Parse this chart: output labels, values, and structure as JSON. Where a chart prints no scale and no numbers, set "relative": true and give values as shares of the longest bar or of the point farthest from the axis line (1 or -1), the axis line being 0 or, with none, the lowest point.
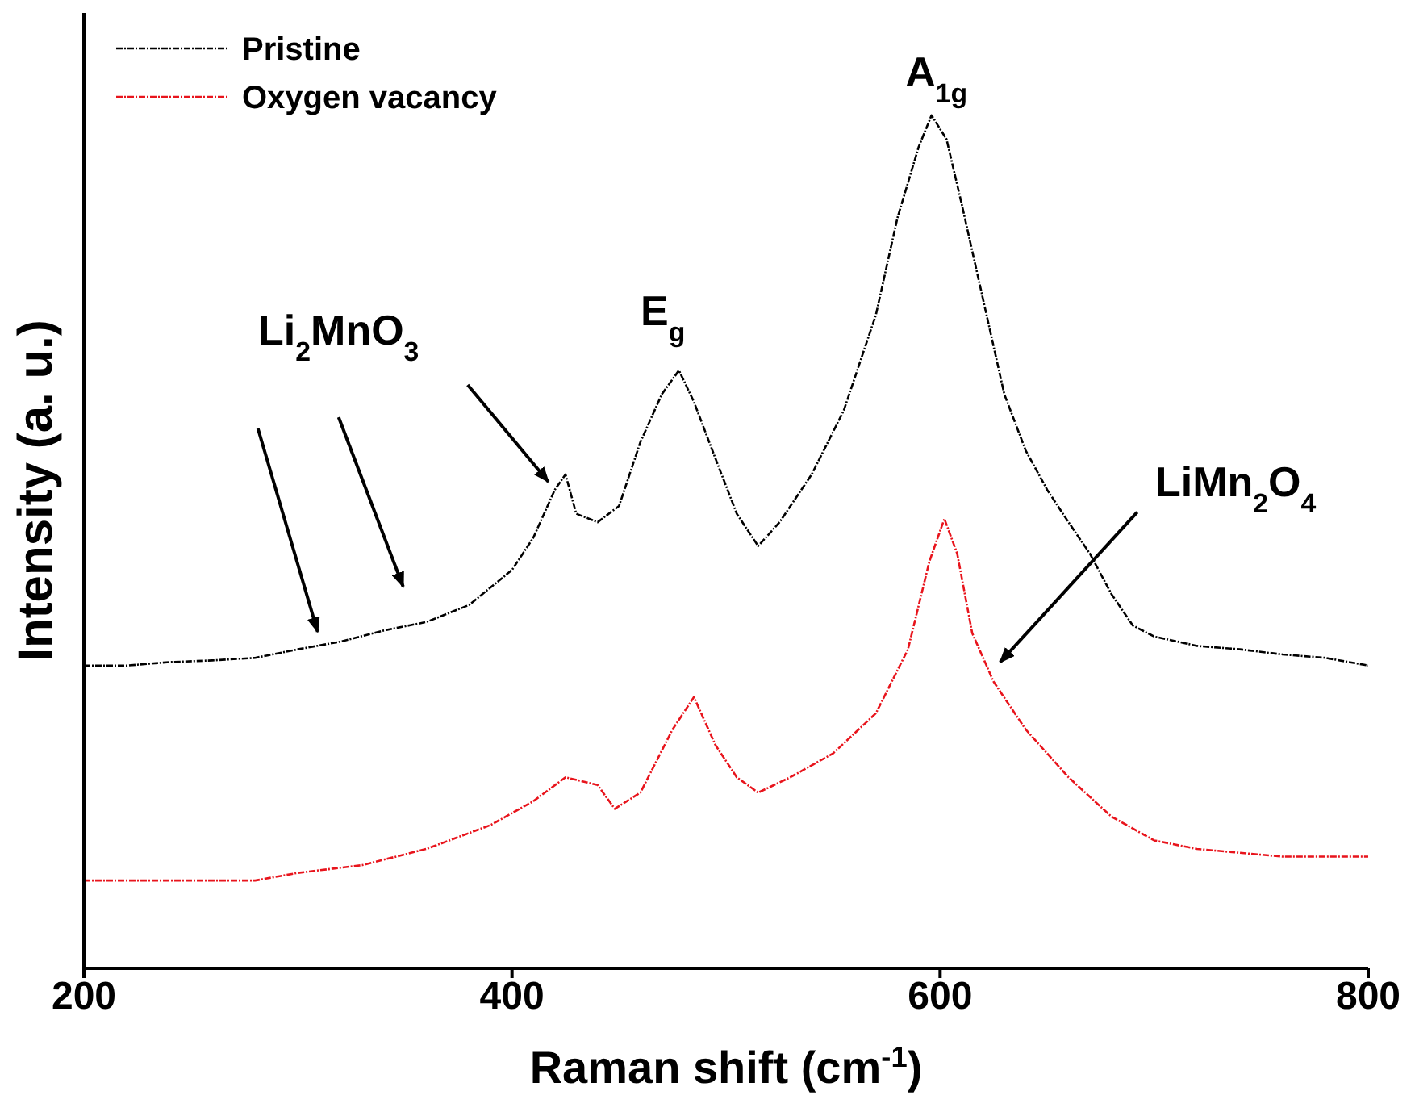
{
  "chart_data": {
    "type": "line",
    "relative": true,
    "xlabel": "Raman shift (cm$^{-1}$)",
    "ylabel": "Intensity (a. u.)",
    "xlim": [
      200,
      800
    ],
    "xticks": [
      200,
      400,
      600,
      800
    ],
    "tick_labels": "x",
    "grid": false,
    "legend": "top left",
    "line_style": "dashed",
    "marker": "none",
    "series": [
      {
        "name": "Pristine",
        "color": "#000000",
        "x": [
          200,
          220,
          240,
          260,
          280,
          300,
          320,
          340,
          360,
          380,
          400,
          410,
          420,
          425,
          430,
          440,
          450,
          460,
          470,
          478,
          485,
          495,
          505,
          515,
          525,
          540,
          555,
          570,
          580,
          590,
          596,
          603,
          610,
          620,
          630,
          640,
          650,
          660,
          670,
          680,
          690,
          700,
          720,
          740,
          760,
          780,
          800
        ],
        "values": [
          0.355,
          0.355,
          0.359,
          0.361,
          0.364,
          0.374,
          0.383,
          0.396,
          0.406,
          0.426,
          0.467,
          0.505,
          0.561,
          0.579,
          0.533,
          0.523,
          0.542,
          0.617,
          0.673,
          0.701,
          0.664,
          0.598,
          0.533,
          0.495,
          0.523,
          0.579,
          0.654,
          0.766,
          0.879,
          0.963,
          1,
          0.972,
          0.897,
          0.785,
          0.673,
          0.607,
          0.561,
          0.523,
          0.486,
          0.439,
          0.402,
          0.389,
          0.378,
          0.374,
          0.368,
          0.364,
          0.355
        ]
      },
      {
        "name": "Oxygen vacancy",
        "color": "#e8141c",
        "x": [
          200,
          240,
          280,
          300,
          330,
          360,
          390,
          410,
          425,
          440,
          448,
          460,
          475,
          485,
          495,
          505,
          515,
          530,
          550,
          570,
          585,
          595,
          602,
          608,
          615,
          625,
          640,
          660,
          680,
          700,
          720,
          760,
          800
        ],
        "values": [
          0.103,
          0.103,
          0.103,
          0.112,
          0.121,
          0.14,
          0.168,
          0.196,
          0.224,
          0.215,
          0.187,
          0.206,
          0.28,
          0.318,
          0.262,
          0.224,
          0.206,
          0.224,
          0.252,
          0.299,
          0.374,
          0.477,
          0.527,
          0.486,
          0.393,
          0.336,
          0.28,
          0.224,
          0.178,
          0.15,
          0.14,
          0.131,
          0.131
        ]
      }
    ],
    "annotations": [
      {
        "text": "Li$_{2}$MnO$_{3}$",
        "x": 420,
        "y": 0.561
      },
      {
        "text": "E$_{g}$",
        "x": 478,
        "y": 0.701
      },
      {
        "text": "A$_{1g}$",
        "x": 596,
        "y": 1
      },
      {
        "text": "LiMn$_{2}$O$_{4}$",
        "x": 625,
        "y": 0.355
      }
    ]
  }
}
